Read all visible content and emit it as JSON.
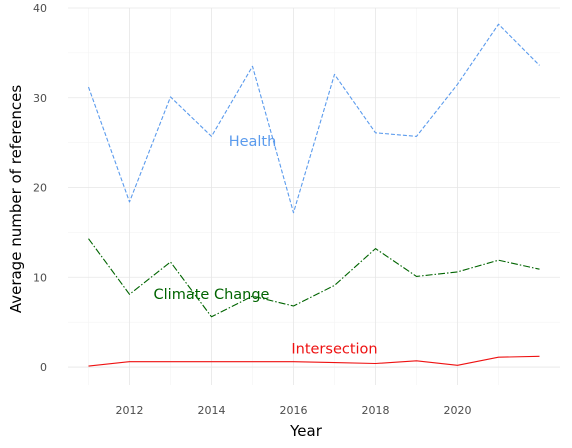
{
  "chart_data": {
    "type": "line",
    "title": "",
    "xlabel": "Year",
    "ylabel": "Average number of references",
    "xlim": [
      2010.5,
      2022.5
    ],
    "ylim": [
      -2,
      40
    ],
    "x_ticks": [
      2012,
      2014,
      2016,
      2018,
      2020
    ],
    "y_ticks": [
      0,
      10,
      20,
      30,
      40
    ],
    "grid": true,
    "legend": "none",
    "x": [
      2011,
      2012,
      2013,
      2014,
      2015,
      2016,
      2017,
      2018,
      2019,
      2020,
      2021,
      2022
    ],
    "series": [
      {
        "name": "Health",
        "color": "#5b9bed",
        "dash": "dashed",
        "values": [
          31.2,
          18.4,
          30.1,
          25.7,
          33.5,
          17.2,
          32.6,
          26.1,
          25.7,
          31.5,
          38.2,
          33.6
        ],
        "label_x": 2015.0,
        "label_y": 24.6
      },
      {
        "name": "Climate Change",
        "color": "#006400",
        "dash": "dashdot",
        "values": [
          14.3,
          8.1,
          11.7,
          5.6,
          7.9,
          6.8,
          9.1,
          13.2,
          10.1,
          10.6,
          11.9,
          10.9
        ],
        "label_x": 2014.0,
        "label_y": 7.6
      },
      {
        "name": "Intersection",
        "color": "#ee1111",
        "dash": "solid",
        "values": [
          0.1,
          0.6,
          0.6,
          0.6,
          0.6,
          0.6,
          0.5,
          0.4,
          0.7,
          0.2,
          1.1,
          1.2
        ],
        "label_x": 2017.0,
        "label_y": 1.5
      }
    ]
  }
}
